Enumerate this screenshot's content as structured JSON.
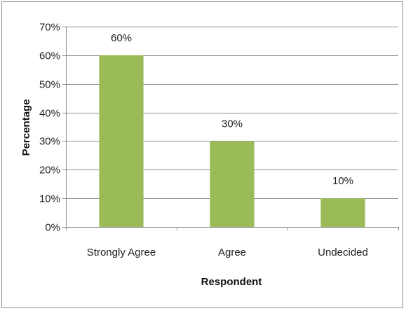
{
  "chart_data": {
    "type": "bar",
    "categories": [
      "Strongly Agree",
      "Agree",
      "Undecided"
    ],
    "values": [
      60,
      30,
      10
    ],
    "data_labels": [
      "60%",
      "30%",
      "10%"
    ],
    "xlabel": "Respondent",
    "ylabel": "Percentage",
    "ylim": [
      0,
      70
    ],
    "yticks": [
      0,
      10,
      20,
      30,
      40,
      50,
      60,
      70
    ],
    "ytick_labels": [
      "0%",
      "10%",
      "20%",
      "30%",
      "40%",
      "50%",
      "60%",
      "70%"
    ],
    "grid": true,
    "legend": "none",
    "bar_color": "#9BBB59",
    "grid_color": "#8c8c8c"
  }
}
